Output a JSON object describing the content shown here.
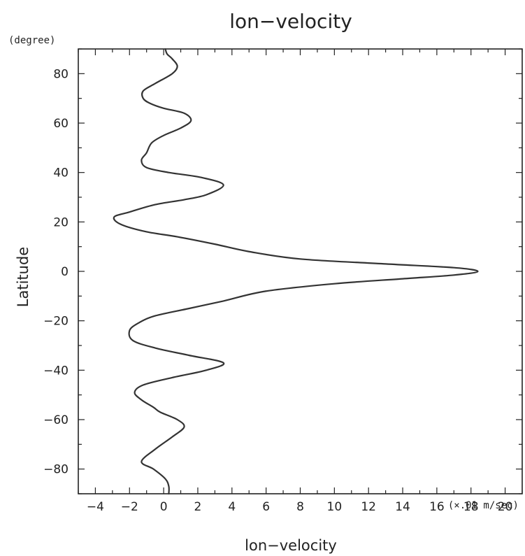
{
  "chart_data": {
    "type": "line",
    "title": "lon−velocity",
    "xlabel": "lon−velocity",
    "ylabel": "Latitude",
    "x_unit": "(×.01 m/sec)",
    "y_unit": "(degree)",
    "xlim": [
      -5,
      21
    ],
    "ylim": [
      -90,
      90
    ],
    "x_ticks": [
      -4,
      -2,
      0,
      2,
      4,
      6,
      8,
      10,
      12,
      14,
      16,
      18,
      20
    ],
    "y_ticks": [
      -80,
      -60,
      -40,
      -20,
      0,
      20,
      40,
      60,
      80
    ],
    "x_tick_labels": [
      "−4",
      "−2",
      "0",
      "2",
      "4",
      "6",
      "8",
      "10",
      "12",
      "14",
      "16",
      "18",
      "20"
    ],
    "y_tick_labels": [
      "−80",
      "−60",
      "−40",
      "−20",
      "0",
      "20",
      "40",
      "60",
      "80"
    ],
    "line_color": "#333333",
    "series": [
      {
        "points": [
          [
            0.3,
            -90
          ],
          [
            0.3,
            -87
          ],
          [
            0.1,
            -84
          ],
          [
            -0.6,
            -80
          ],
          [
            -1.3,
            -77
          ],
          [
            -0.5,
            -72
          ],
          [
            0.5,
            -67
          ],
          [
            1.2,
            -63
          ],
          [
            0.8,
            -60
          ],
          [
            -0.2,
            -57
          ],
          [
            -0.6,
            -55
          ],
          [
            -1.3,
            -52
          ],
          [
            -1.7,
            -49
          ],
          [
            -1.2,
            -46
          ],
          [
            0.5,
            -43
          ],
          [
            2.5,
            -40
          ],
          [
            3.5,
            -37
          ],
          [
            1.5,
            -34
          ],
          [
            -0.5,
            -31
          ],
          [
            -1.8,
            -28
          ],
          [
            -2.0,
            -24
          ],
          [
            -1.5,
            -21
          ],
          [
            -0.5,
            -18
          ],
          [
            1.5,
            -15
          ],
          [
            3.5,
            -12
          ],
          [
            6.0,
            -8
          ],
          [
            10.0,
            -5
          ],
          [
            14.0,
            -3
          ],
          [
            17.0,
            -1.5
          ],
          [
            18.4,
            0
          ],
          [
            17.0,
            1.5
          ],
          [
            13.0,
            3
          ],
          [
            8.0,
            5
          ],
          [
            5.0,
            8
          ],
          [
            3.0,
            11
          ],
          [
            0.8,
            14
          ],
          [
            -1.0,
            16
          ],
          [
            -2.5,
            19
          ],
          [
            -2.9,
            22
          ],
          [
            -2.0,
            24
          ],
          [
            -0.5,
            27
          ],
          [
            1.2,
            29
          ],
          [
            2.5,
            31
          ],
          [
            3.5,
            35
          ],
          [
            2.2,
            38
          ],
          [
            0.3,
            40
          ],
          [
            -1.0,
            42
          ],
          [
            -1.3,
            45
          ],
          [
            -1.0,
            48
          ],
          [
            -0.7,
            52
          ],
          [
            0.0,
            55
          ],
          [
            1.0,
            58
          ],
          [
            1.6,
            61
          ],
          [
            1.2,
            64
          ],
          [
            0.0,
            66
          ],
          [
            -0.8,
            68
          ],
          [
            -1.2,
            70
          ],
          [
            -1.2,
            73
          ],
          [
            -0.5,
            76
          ],
          [
            0.5,
            80
          ],
          [
            0.8,
            83
          ],
          [
            0.5,
            86
          ],
          [
            0.2,
            88
          ],
          [
            0.1,
            90
          ]
        ]
      }
    ]
  }
}
